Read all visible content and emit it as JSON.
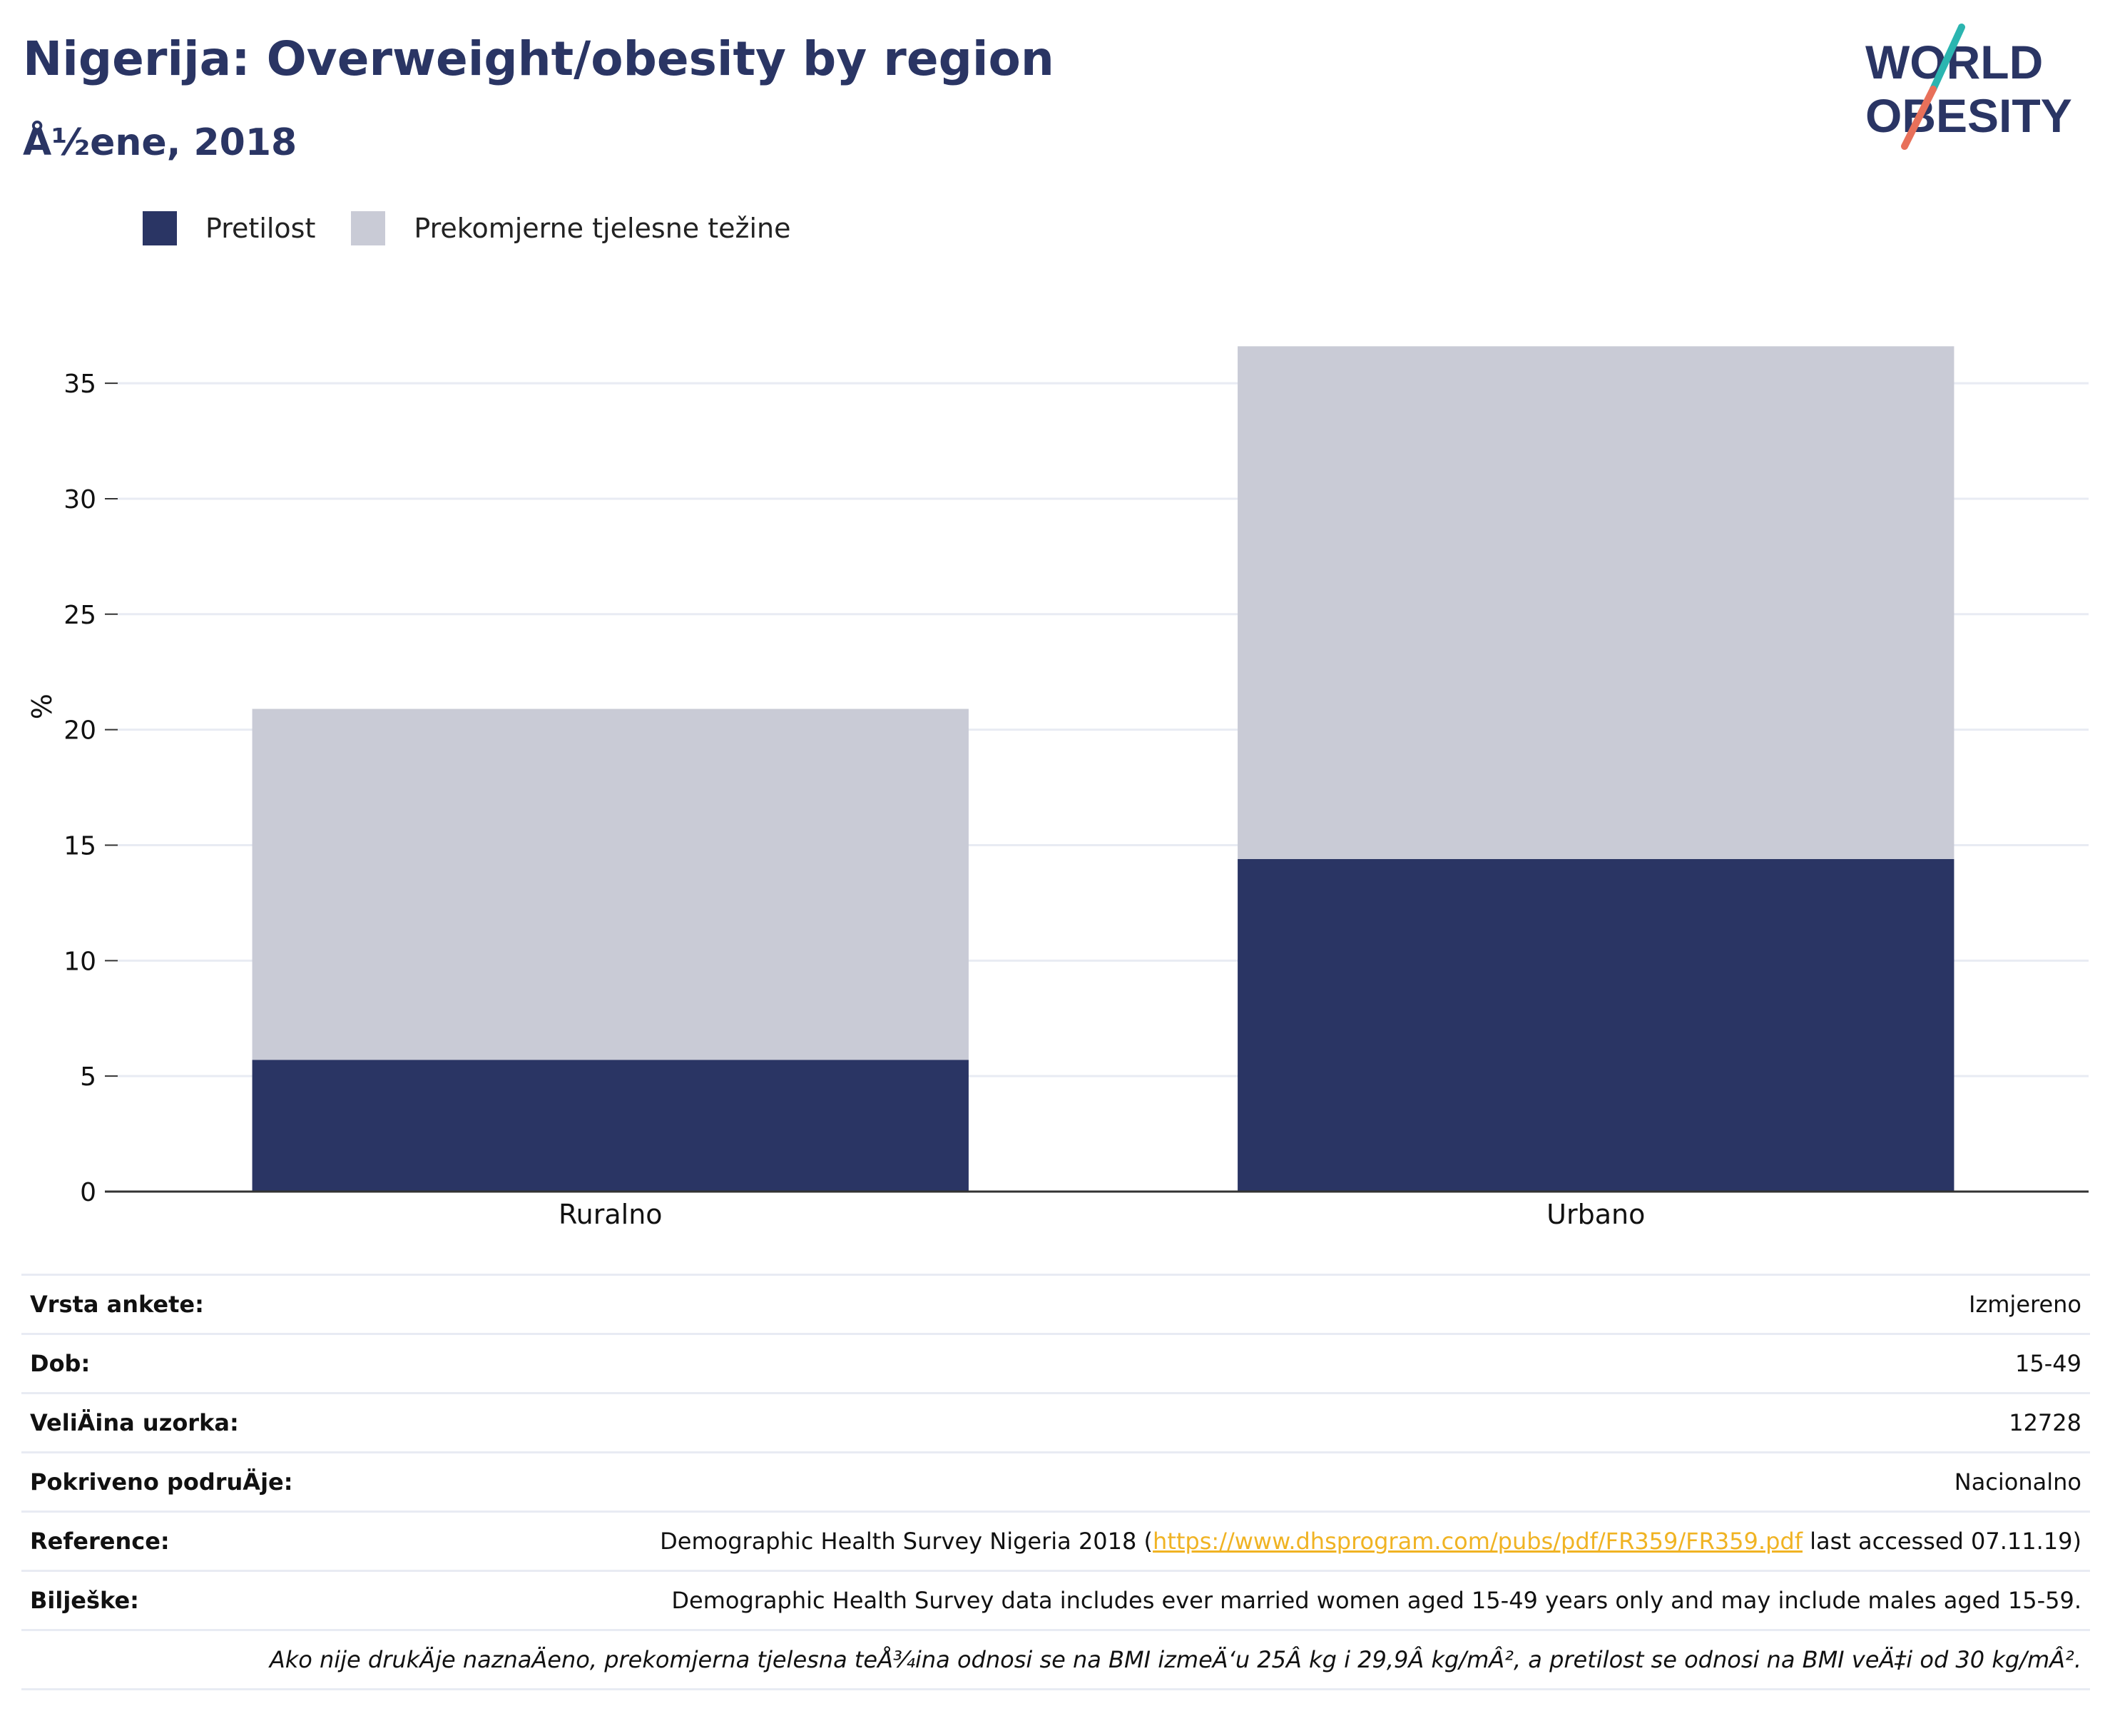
{
  "header": {
    "title": "Nigerija: Overweight/obesity by region",
    "subtitle": "Å½ene, 2018"
  },
  "logo": {
    "line1": "WORLD",
    "line2": "OBESITY",
    "colors": {
      "text": "#2a3564",
      "slash_top": "#2bb5b0",
      "slash_bottom": "#e8705a"
    }
  },
  "legend": [
    {
      "label": "Pretilost",
      "color": "#2a3564"
    },
    {
      "label": "Prekomjerne tjelesne težine",
      "color": "#c9cbd6"
    }
  ],
  "chart_data": {
    "type": "bar",
    "stacked": true,
    "categories": [
      "Ruralno",
      "Urbano"
    ],
    "series": [
      {
        "name": "Pretilost",
        "values": [
          5.7,
          14.4
        ],
        "color": "#2a3564"
      },
      {
        "name": "Prekomjerne tjelesne težine",
        "values": [
          15.2,
          22.2
        ],
        "color": "#c9cbd6"
      }
    ],
    "ylabel": "%",
    "ylim": [
      0,
      38
    ],
    "yticks": [
      0,
      5,
      10,
      15,
      20,
      25,
      30,
      35
    ],
    "grid": true,
    "legend_position": "top-left"
  },
  "info": {
    "survey_type": {
      "label": "Vrsta ankete:",
      "value": "Izmjereno"
    },
    "age": {
      "label": "Dob:",
      "value": "15-49"
    },
    "sample_size": {
      "label": "VeliÄ\u001dina uzorka:",
      "value": "12728"
    },
    "area": {
      "label": "Pokriveno podruÄ\u001dje:",
      "value": "Nacionalno"
    },
    "reference": {
      "label": "Reference:",
      "prefix": "Demographic Health Survey Nigeria 2018 (",
      "link": "https://www.dhsprogram.com/pubs/pdf/FR359/FR359.pdf",
      "suffix": " last accessed 07.11.19)"
    },
    "notes": {
      "label": "Bilješke:",
      "value": "Demographic Health Survey data includes ever married women aged 15-49 years only and may include males aged 15-59."
    },
    "definition": "Ako nije drukÄ\u001dje naznaÄ\u001deno, prekomjerna tjelesna teÅ¾ina odnosi se na BMI izmeÄ‘u 25Â kg i 29,9Â kg/mÂ², a pretilost se odnosi na BMI veÄ‡i od 30 kg/mÂ²."
  }
}
